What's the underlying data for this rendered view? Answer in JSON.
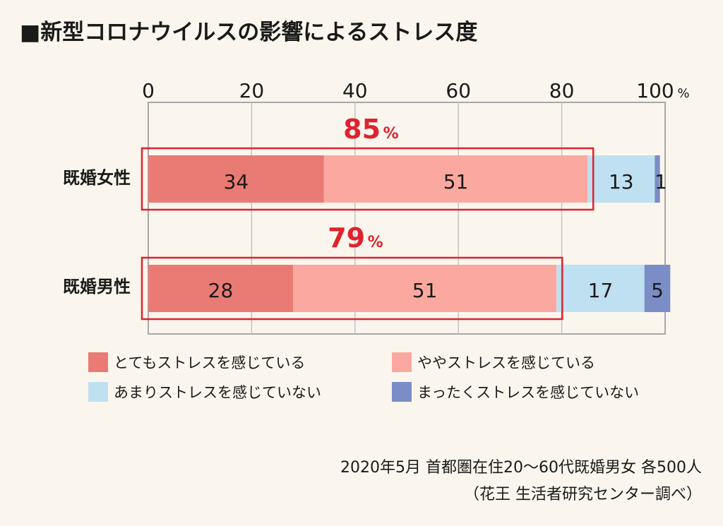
{
  "title": "■新型コロナウイルスの影響によるストレス度",
  "chart_data": {
    "type": "bar",
    "orientation": "horizontal",
    "stacked": true,
    "xlim": [
      0,
      100
    ],
    "ticks": [
      "0",
      "20",
      "40",
      "60",
      "80",
      "100"
    ],
    "tick_values": [
      0,
      20,
      40,
      60,
      80,
      100
    ],
    "tick_unit": "%",
    "grid": true,
    "categories": [
      "既婚女性",
      "既婚男性"
    ],
    "series": [
      {
        "name": "とてもストレスを感じている",
        "values": [
          34,
          28
        ],
        "color": "#ea7b74"
      },
      {
        "name": "ややストレスを感じている",
        "values": [
          51,
          51
        ],
        "color": "#fba9a0"
      },
      {
        "name": "あまりストレスを感じていない",
        "values": [
          13,
          17
        ],
        "color": "#bfe0f0"
      },
      {
        "name": "まったくストレスを感じていない",
        "values": [
          1,
          5
        ],
        "color": "#7b8dc6"
      }
    ],
    "totals": [
      {
        "value": "85",
        "unit": "%"
      },
      {
        "value": "79",
        "unit": "%"
      }
    ],
    "highlight_color": "#e0222e"
  },
  "source": {
    "line1": "2020年5月 首都圏在住20〜60代既婚男女 各500人",
    "line2": "（花王 生活者研究センター調べ）"
  }
}
